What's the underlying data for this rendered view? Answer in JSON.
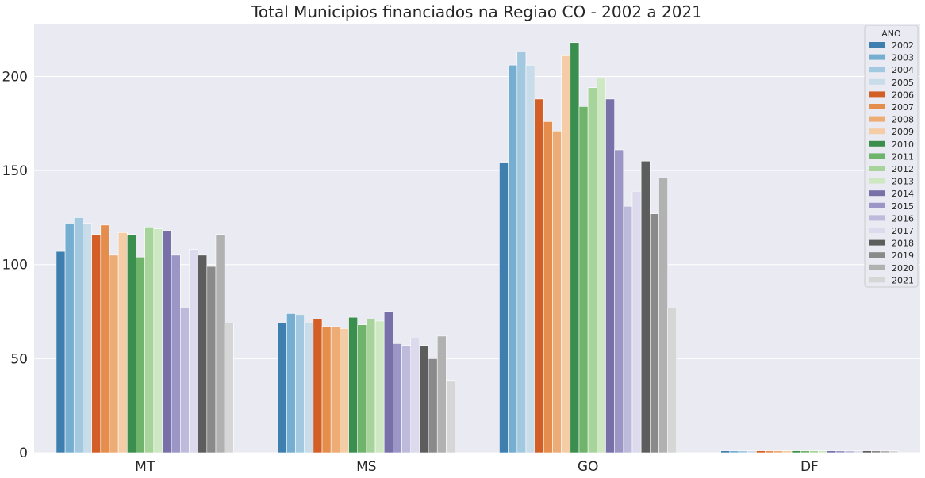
{
  "chart_data": {
    "type": "bar",
    "title": "Total Municipios financiados na Regiao CO - 2002 a 2021",
    "xlabel": "",
    "ylabel": "",
    "categories": [
      "MT",
      "MS",
      "GO",
      "DF"
    ],
    "ylim": [
      0,
      228
    ],
    "yticks": [
      0,
      50,
      100,
      150,
      200
    ],
    "grid": true,
    "legend": {
      "title": "ANO",
      "placement": "top-right"
    },
    "series": [
      {
        "name": "2002",
        "color": "#3f7fb0",
        "values": [
          107,
          69,
          154,
          1
        ]
      },
      {
        "name": "2003",
        "color": "#76aed1",
        "values": [
          122,
          74,
          206,
          1
        ]
      },
      {
        "name": "2004",
        "color": "#a3c9e0",
        "values": [
          125,
          73,
          213,
          1
        ]
      },
      {
        "name": "2005",
        "color": "#c9dcea",
        "values": [
          122,
          69,
          206,
          1
        ]
      },
      {
        "name": "2006",
        "color": "#d45f26",
        "values": [
          116,
          71,
          188,
          1
        ]
      },
      {
        "name": "2007",
        "color": "#e58d4c",
        "values": [
          121,
          67,
          176,
          1
        ]
      },
      {
        "name": "2008",
        "color": "#edac75",
        "values": [
          105,
          67,
          171,
          1
        ]
      },
      {
        "name": "2009",
        "color": "#f4cda6",
        "values": [
          117,
          66,
          211,
          1
        ]
      },
      {
        "name": "2010",
        "color": "#3b8f4e",
        "values": [
          116,
          72,
          218,
          1
        ]
      },
      {
        "name": "2011",
        "color": "#70b46b",
        "values": [
          104,
          68,
          184,
          1
        ]
      },
      {
        "name": "2012",
        "color": "#a7d49b",
        "values": [
          120,
          71,
          194,
          1
        ]
      },
      {
        "name": "2013",
        "color": "#cfe8c4",
        "values": [
          119,
          70,
          199,
          1
        ]
      },
      {
        "name": "2014",
        "color": "#7870a8",
        "values": [
          118,
          75,
          188,
          1
        ]
      },
      {
        "name": "2015",
        "color": "#9c96c6",
        "values": [
          105,
          58,
          161,
          1
        ]
      },
      {
        "name": "2016",
        "color": "#bdbadb",
        "values": [
          77,
          57,
          131,
          1
        ]
      },
      {
        "name": "2017",
        "color": "#dcdaec",
        "values": [
          108,
          61,
          139,
          1
        ]
      },
      {
        "name": "2018",
        "color": "#5d5d5d",
        "values": [
          105,
          57,
          155,
          1
        ]
      },
      {
        "name": "2019",
        "color": "#8a8a8a",
        "values": [
          99,
          50,
          127,
          1
        ]
      },
      {
        "name": "2020",
        "color": "#b1b1b1",
        "values": [
          116,
          62,
          146,
          1
        ]
      },
      {
        "name": "2021",
        "color": "#d6d6d6",
        "values": [
          69,
          38,
          77,
          1
        ]
      }
    ]
  }
}
